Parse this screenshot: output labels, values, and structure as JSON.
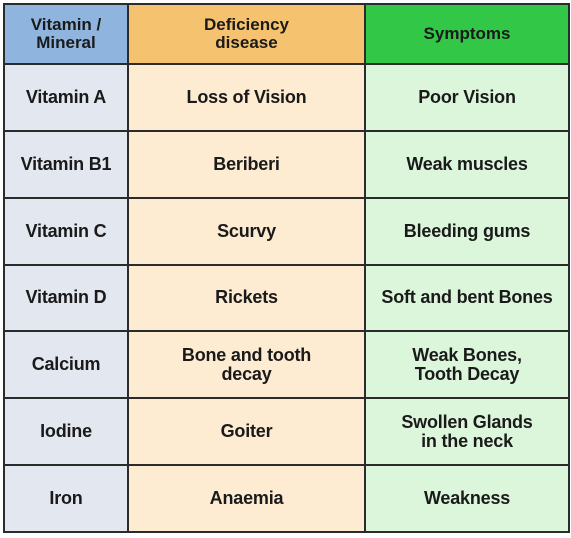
{
  "table": {
    "headers": [
      "Vitamin /\nMineral",
      "Deficiency\ndisease",
      "Symptoms"
    ],
    "rows": [
      [
        "Vitamin A",
        "Loss of Vision",
        "Poor Vision"
      ],
      [
        "Vitamin B1",
        "Beriberi",
        "Weak muscles"
      ],
      [
        "Vitamin C",
        "Scurvy",
        "Bleeding gums"
      ],
      [
        "Vitamin D",
        "Rickets",
        "Soft and bent Bones"
      ],
      [
        "Calcium",
        "Bone and tooth\ndecay",
        "Weak Bones,\nTooth Decay"
      ],
      [
        "Iodine",
        "Goiter",
        "Swollen Glands\nin the neck"
      ],
      [
        "Iron",
        "Anaemia",
        "Weakness"
      ]
    ]
  },
  "colors": {
    "header_col1": "#8fb5df",
    "header_col2": "#f5c36f",
    "header_col3": "#33c748",
    "body_col1": "#e2e7f0",
    "body_col2": "#fdebd2",
    "body_col3": "#dcf6db",
    "border": "#2b2b2b"
  }
}
